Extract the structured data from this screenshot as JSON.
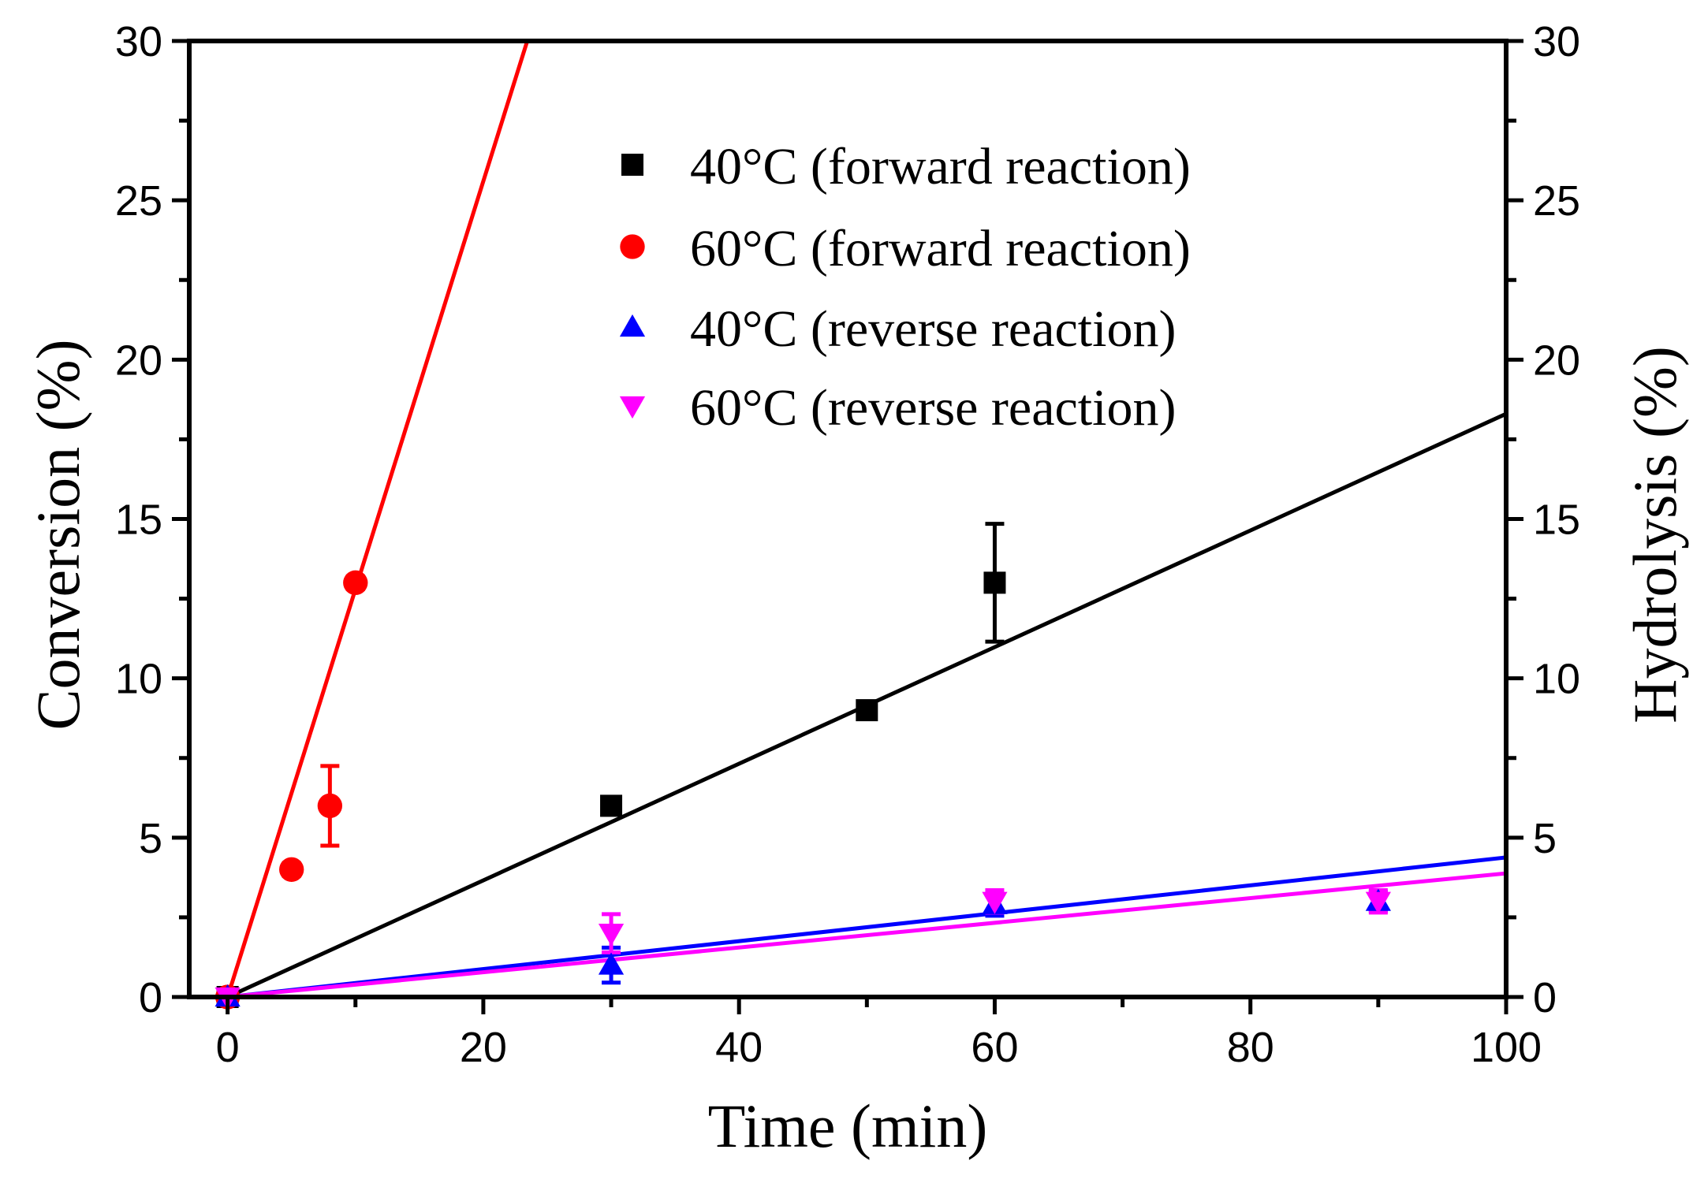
{
  "chart_data": {
    "type": "scatter",
    "xlabel": "Time (min)",
    "ylabel": "Conversion  (%)",
    "y2label": "Hydrolysis  (%)",
    "xlim": [
      -3,
      100
    ],
    "ylim": [
      0,
      30
    ],
    "y2lim": [
      0,
      30
    ],
    "xticks": [
      "0",
      "20",
      "40",
      "60",
      "80",
      "100"
    ],
    "yticks": [
      "0",
      "5",
      "10",
      "15",
      "20",
      "25",
      "30"
    ],
    "y2ticks": [
      "0",
      "5",
      "10",
      "15",
      "20",
      "25",
      "30"
    ],
    "legend_position": "top-center",
    "series": [
      {
        "name": "40°C (forward reaction)",
        "marker": "square",
        "color": "#000000",
        "points": [
          {
            "x": 0,
            "y": 0
          },
          {
            "x": 30,
            "y": 6.0,
            "err": 0.25
          },
          {
            "x": 50,
            "y": 9.0,
            "err": 0.2
          },
          {
            "x": 60,
            "y": 13.0,
            "err": 1.85
          }
        ],
        "fit_slope": 0.183
      },
      {
        "name": "60°C (forward reaction)",
        "marker": "circle",
        "color": "#ff0000",
        "points": [
          {
            "x": 0,
            "y": 0
          },
          {
            "x": 5,
            "y": 4.0,
            "err": 0.2
          },
          {
            "x": 8,
            "y": 6.0,
            "err": 1.25
          },
          {
            "x": 10,
            "y": 13.0,
            "err": 0.2
          }
        ],
        "fit_slope": 1.28
      },
      {
        "name": "40°C (reverse reaction)",
        "marker": "triangle-up",
        "color": "#0000ff",
        "points": [
          {
            "x": 0,
            "y": 0
          },
          {
            "x": 30,
            "y": 1.0,
            "err": 0.55
          },
          {
            "x": 60,
            "y": 2.9,
            "err": 0.35
          },
          {
            "x": 90,
            "y": 3.0,
            "err": 0.3
          }
        ],
        "fit_slope": 0.0438
      },
      {
        "name": "60°C (reverse reaction)",
        "marker": "triangle-down",
        "color": "#ff00ff",
        "points": [
          {
            "x": 0,
            "y": 0
          },
          {
            "x": 30,
            "y": 2.0,
            "err": 0.6
          },
          {
            "x": 60,
            "y": 3.0,
            "err": 0.35
          },
          {
            "x": 90,
            "y": 3.0,
            "err": 0.35
          }
        ],
        "fit_slope": 0.0388
      }
    ]
  }
}
